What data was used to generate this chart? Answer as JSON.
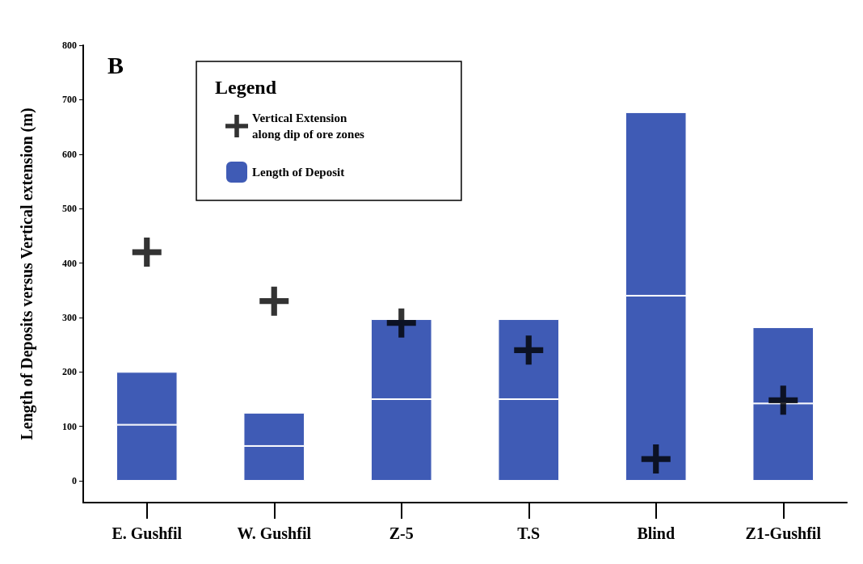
{
  "chart_data": {
    "type": "bar",
    "title": "B",
    "ylabel": "Length of Deposits versus Vertical extension (m)",
    "legend_title": "Legend",
    "legend": "top left",
    "stacked": true,
    "categories": [
      "E. Gushfil",
      "W. Gushfil",
      "Z-5",
      "T.S",
      "Blind",
      "Z1-Gushfil"
    ],
    "ylim": [
      -40,
      800
    ],
    "yticks": [
      0,
      100,
      200,
      300,
      400,
      500,
      600,
      700,
      800
    ],
    "grid": false,
    "series": [
      {
        "type": "scatter",
        "name": "Vertical Extension\nalong dip of ore zones",
        "color": "#000000",
        "marker": "cross",
        "values": [
          420,
          330,
          290,
          240,
          40,
          148
        ]
      },
      {
        "name": "Length of Deposit",
        "color": "#3f5bb5",
        "values": [
          103,
          64,
          150,
          150,
          340,
          142
        ]
      },
      {
        "color": "#3f5bb5",
        "values": [
          97,
          61,
          147,
          147,
          337,
          140
        ]
      }
    ]
  }
}
